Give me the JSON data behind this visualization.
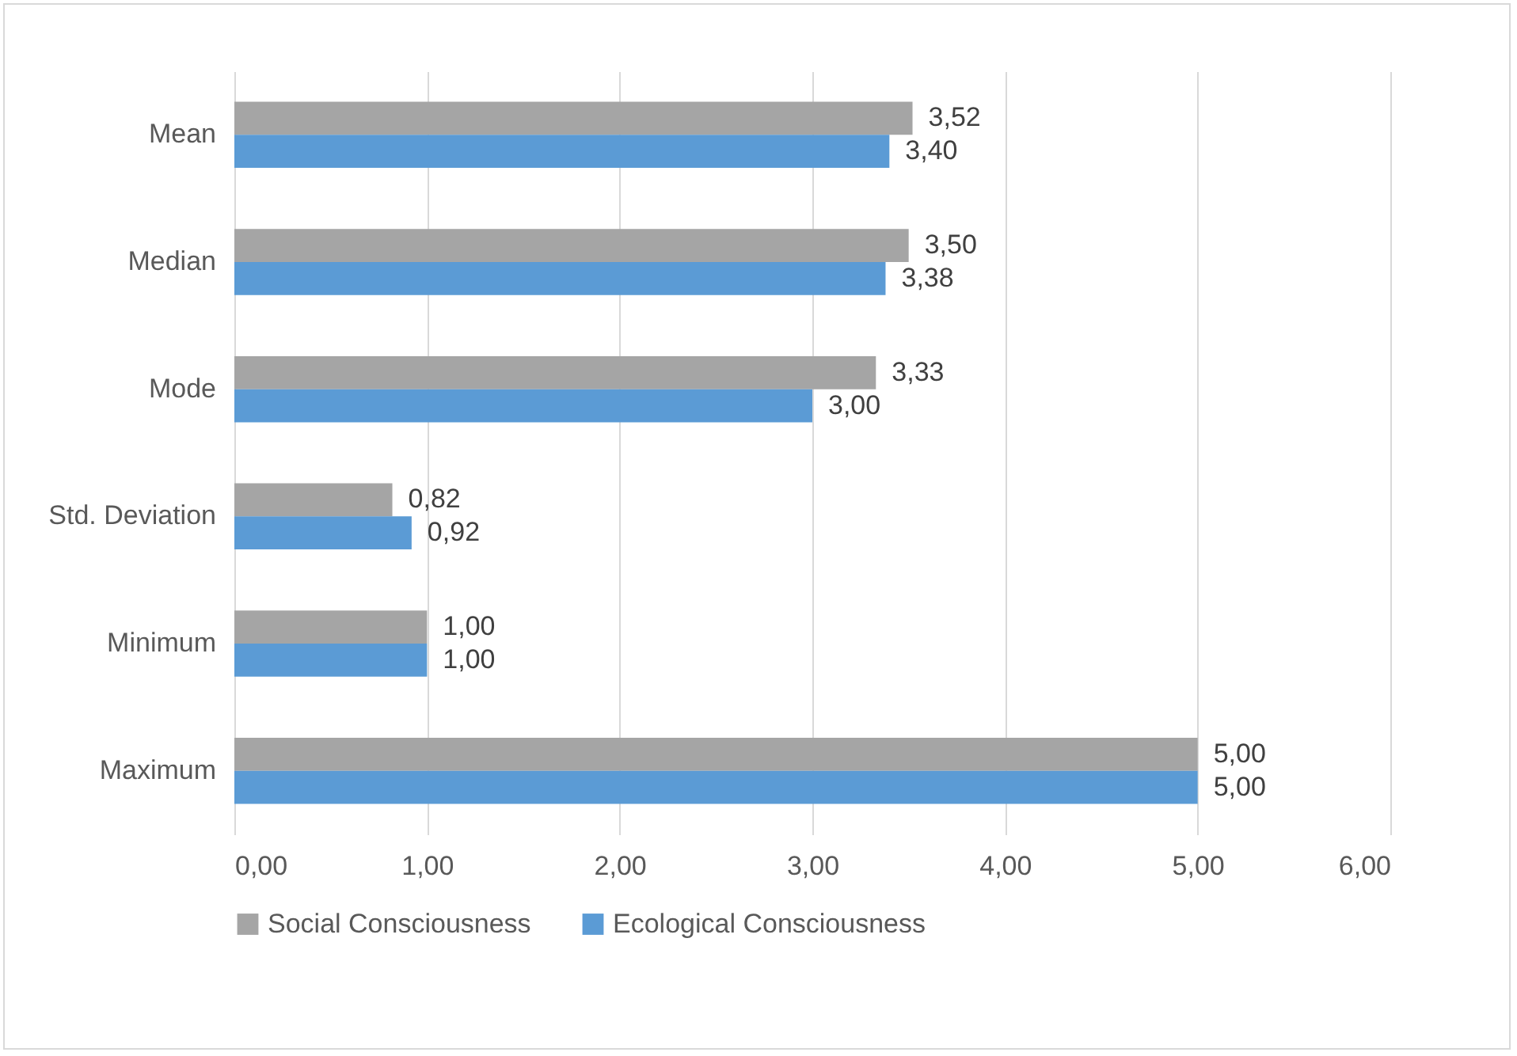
{
  "chart_data": {
    "type": "bar",
    "orientation": "horizontal",
    "categories": [
      "Mean",
      "Median",
      "Mode",
      "Std. Deviation",
      "Minimum",
      "Maximum"
    ],
    "series": [
      {
        "name": "Social Consciousness",
        "color": "#a5a5a5",
        "values": [
          3.52,
          3.5,
          3.33,
          0.82,
          1,
          5
        ],
        "value_labels": [
          "3,52",
          "3,50",
          "3,33",
          "0,82",
          "1,00",
          "5,00"
        ]
      },
      {
        "name": "Ecological Consciousness",
        "color": "#5b9bd5",
        "values": [
          3.4,
          3.38,
          3,
          0.92,
          1,
          5
        ],
        "value_labels": [
          "3,40",
          "3,38",
          "3,00",
          "0,92",
          "1,00",
          "5,00"
        ]
      }
    ],
    "xlim": [
      0,
      6
    ],
    "xticks": [
      {
        "value": 0,
        "label": "0,00"
      },
      {
        "value": 1,
        "label": "1,00"
      },
      {
        "value": 2,
        "label": "2,00"
      },
      {
        "value": 3,
        "label": "3,00"
      },
      {
        "value": 4,
        "label": "4,00"
      },
      {
        "value": 5,
        "label": "5,00"
      },
      {
        "value": 6,
        "label": "6,00"
      }
    ],
    "grid": "x",
    "legend": "bottom"
  }
}
